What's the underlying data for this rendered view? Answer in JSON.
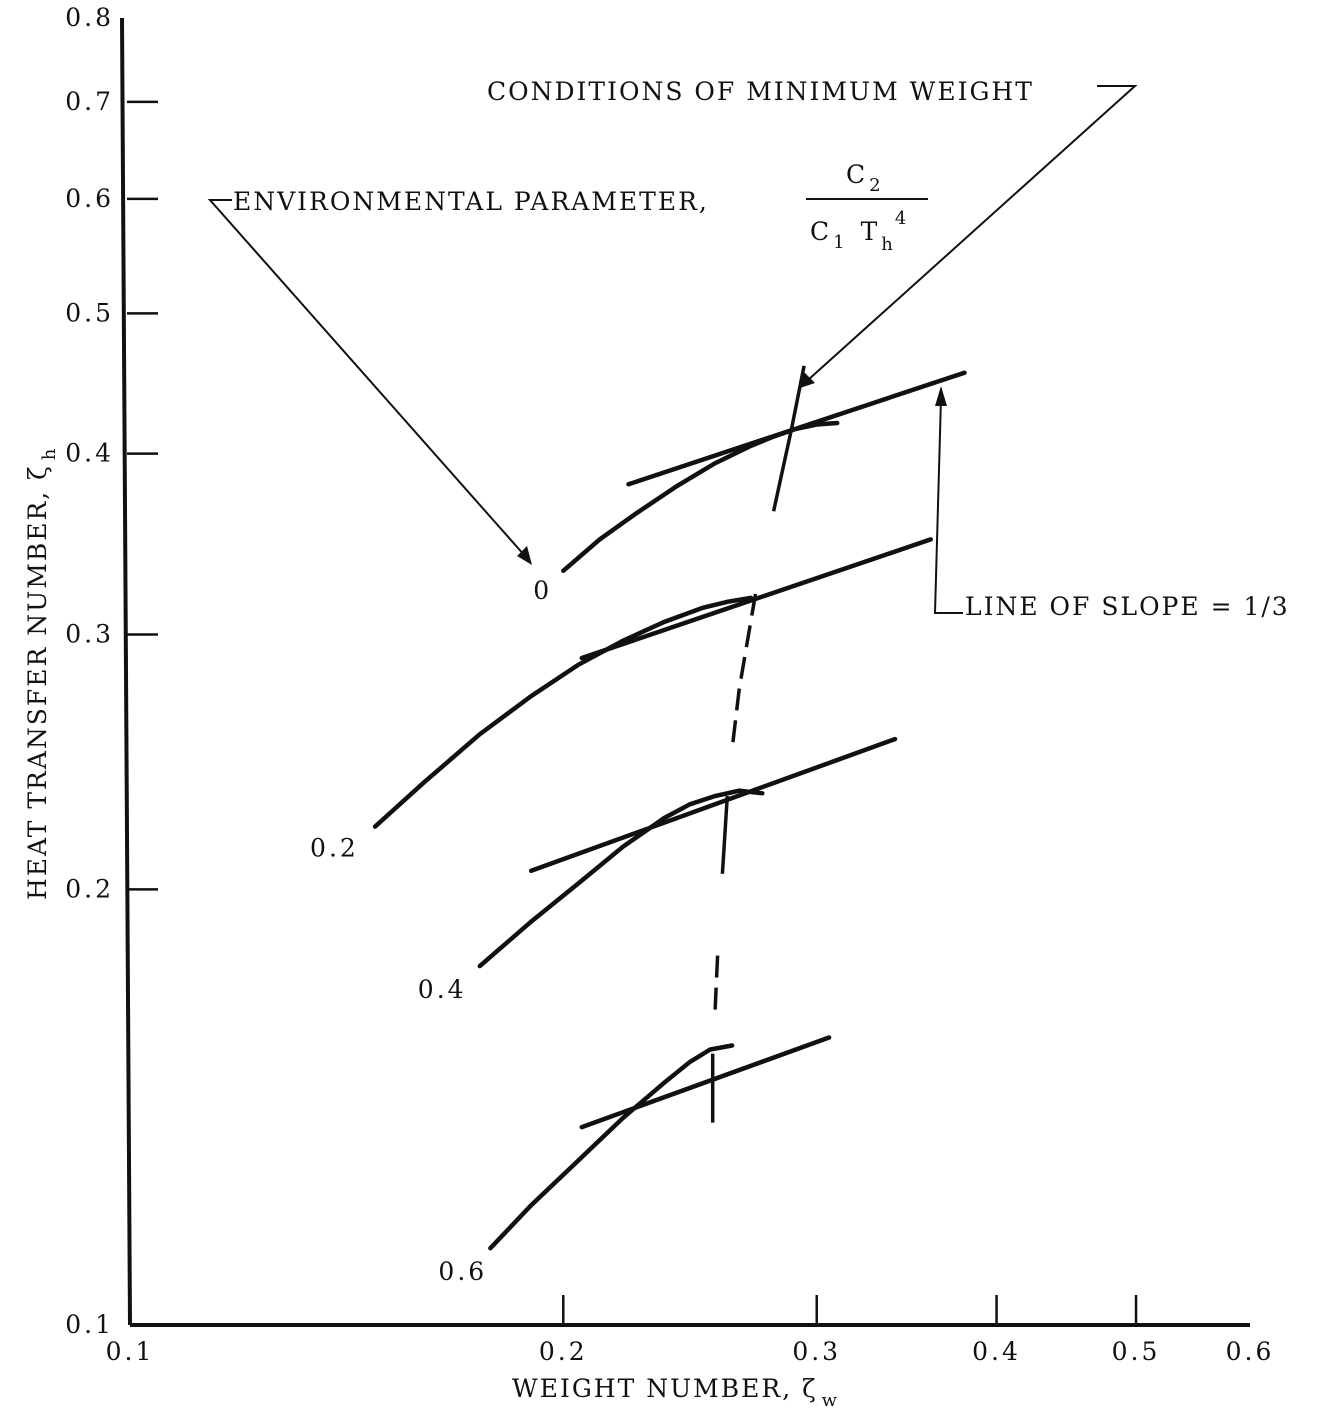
{
  "chart_data": {
    "type": "line",
    "title": "",
    "xlabel": "WEIGHT NUMBER, ζ",
    "xlabel_sub": "w",
    "ylabel": "HEAT TRANSFER NUMBER, ζ",
    "ylabel_sub": "h",
    "x_scale": "log",
    "y_scale": "log",
    "xlim": [
      0.1,
      0.6
    ],
    "ylim": [
      0.1,
      0.8
    ],
    "x_ticks": [
      {
        "value": 0.1,
        "label": "0.1"
      },
      {
        "value": 0.2,
        "label": "0.2"
      },
      {
        "value": 0.3,
        "label": "0.3"
      },
      {
        "value": 0.4,
        "label": "0.4"
      },
      {
        "value": 0.5,
        "label": "0.5"
      },
      {
        "value": 0.6,
        "label": "0.6"
      }
    ],
    "y_ticks": [
      {
        "value": 0.1,
        "label": "0.1"
      },
      {
        "value": 0.2,
        "label": "0.2"
      },
      {
        "value": 0.3,
        "label": "0.3"
      },
      {
        "value": 0.4,
        "label": "0.4"
      },
      {
        "value": 0.5,
        "label": "0.5"
      },
      {
        "value": 0.6,
        "label": "0.6"
      },
      {
        "value": 0.7,
        "label": "0.7"
      },
      {
        "value": 0.8,
        "label": "0.8"
      }
    ],
    "series": [
      {
        "name": "0",
        "x": [
          0.2,
          0.212,
          0.225,
          0.24,
          0.255,
          0.27,
          0.28,
          0.29,
          0.3,
          0.31
        ],
        "y": [
          0.332,
          0.349,
          0.364,
          0.38,
          0.394,
          0.405,
          0.411,
          0.416,
          0.419,
          0.42
        ]
      },
      {
        "name": "0.2",
        "x": [
          0.148,
          0.16,
          0.175,
          0.19,
          0.205,
          0.22,
          0.235,
          0.25,
          0.26,
          0.27
        ],
        "y": [
          0.221,
          0.237,
          0.256,
          0.272,
          0.286,
          0.297,
          0.306,
          0.313,
          0.316,
          0.318
        ]
      },
      {
        "name": "0.4",
        "x": [
          0.175,
          0.19,
          0.205,
          0.22,
          0.235,
          0.245,
          0.255,
          0.265,
          0.275
        ],
        "y": [
          0.177,
          0.19,
          0.202,
          0.214,
          0.224,
          0.229,
          0.232,
          0.234,
          0.233
        ]
      },
      {
        "name": "0.6",
        "x": [
          0.178,
          0.19,
          0.205,
          0.22,
          0.235,
          0.245,
          0.253,
          0.262
        ],
        "y": [
          0.113,
          0.121,
          0.13,
          0.139,
          0.147,
          0.152,
          0.155,
          0.156
        ]
      }
    ],
    "slope_lines": [
      {
        "x": [
          0.222,
          0.38
        ],
        "y": [
          0.381,
          0.455
        ]
      },
      {
        "x": [
          0.206,
          0.36
        ],
        "y": [
          0.289,
          0.349
        ]
      },
      {
        "x": [
          0.19,
          0.34
        ],
        "y": [
          0.206,
          0.254
        ]
      },
      {
        "x": [
          0.206,
          0.306
        ],
        "y": [
          0.137,
          0.158
        ]
      }
    ],
    "min_weight_locus": {
      "x": [
        0.294,
        0.288,
        0.28,
        0.272,
        0.265,
        0.262,
        0.26,
        0.258,
        0.256,
        0.255,
        0.254,
        0.254
      ],
      "y": [
        0.46,
        0.415,
        0.365,
        0.32,
        0.275,
        0.25,
        0.232,
        0.205,
        0.18,
        0.165,
        0.154,
        0.138
      ]
    },
    "curve_labels": [
      "0",
      "0.2",
      "0.4",
      "0.6"
    ],
    "annotations": {
      "conditions": "CONDITIONS OF MINIMUM WEIGHT",
      "env_param": "ENVIRONMENTAL PARAMETER,",
      "frac_num": "C",
      "frac_num_sub": "2",
      "frac_den_c": "C",
      "frac_den_c_sub": "1",
      "frac_den_t": "T",
      "frac_den_t_sub": "h",
      "frac_den_t_sup": "4",
      "slope_label": "LINE OF SLOPE = 1/3"
    },
    "grid": false,
    "legend": "none"
  }
}
